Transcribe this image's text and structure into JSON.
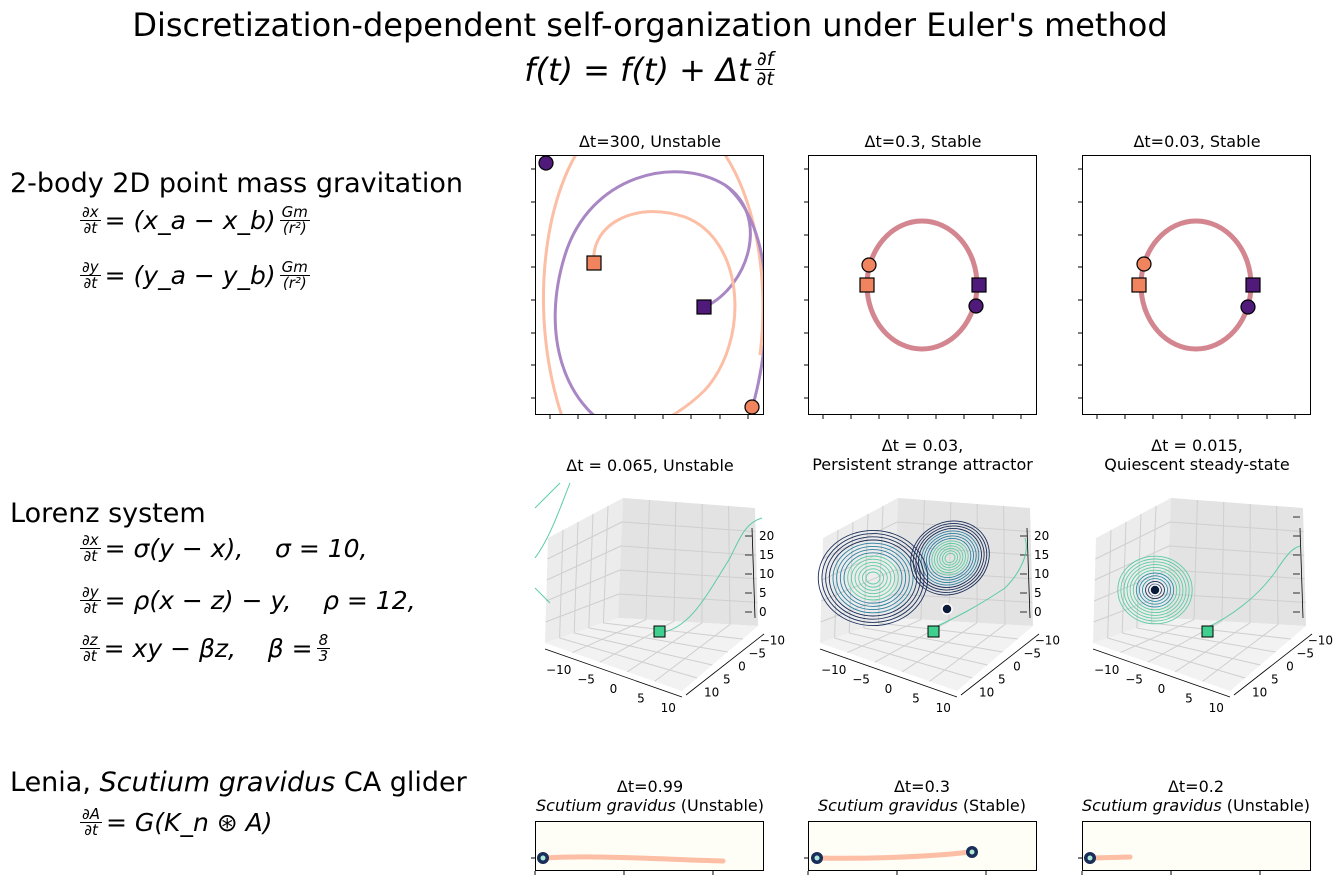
{
  "figure": {
    "title": "Discretization-dependent self-organization under Euler's method",
    "update_rule": {
      "lhs": "f(t) = f(t) + Δt",
      "num": "∂f",
      "den": "∂t"
    }
  },
  "systems": [
    {
      "name": "2-body 2D point mass gravitation",
      "equations": [
        {
          "num": "∂x",
          "den": "∂t",
          "rhs": "= (x_a − x_b)",
          "frac2_num": "Gm",
          "frac2_den": "(r²)"
        },
        {
          "num": "∂y",
          "den": "∂t",
          "rhs": "= (y_a − y_b)",
          "frac2_num": "Gm",
          "frac2_den": "(r²)"
        }
      ]
    },
    {
      "name": "Lorenz system",
      "equations": [
        {
          "num": "∂x",
          "den": "∂t",
          "rhs": "= σ(y − x),    σ = 10,"
        },
        {
          "num": "∂y",
          "den": "∂t",
          "rhs": "= ρ(x − z) − y,    ρ = 12,"
        },
        {
          "num": "∂z",
          "den": "∂t",
          "rhs": "= xy − βz,    β =",
          "frac2_num": "8",
          "frac2_den": "3"
        }
      ]
    },
    {
      "name_prefix": "Lenia, ",
      "name_italic": "Scutium gravidus",
      "name_suffix": " CA glider",
      "equations": [
        {
          "num": "∂A",
          "den": "∂t",
          "rhs": "= G(K_n ⊛ A)"
        }
      ]
    }
  ],
  "colors": {
    "body_a": "#f0845f",
    "body_b": "#4f1a7a",
    "orbit_a": "#fcbea4",
    "orbit_b": "#a887c4",
    "orbit_stable": "#d3868f",
    "lorenz_light": "#5ccca4",
    "lorenz_dark": "#1a2e5a",
    "lenia_trail": "#fcbea4",
    "lenia_bg": "#fefef6"
  },
  "chart_data": [
    {
      "type": "line",
      "title": "Δt=300, Unstable",
      "dt": 300,
      "label": "Unstable"
    },
    {
      "type": "line",
      "title": "Δt=0.3, Stable",
      "dt": 0.3,
      "label": "Stable"
    },
    {
      "type": "line",
      "title": "Δt=0.03, Stable",
      "dt": 0.03,
      "label": "Stable"
    },
    {
      "type": "line",
      "title": "Δt = 0.065, Unstable",
      "dt": 0.065,
      "label": "Unstable",
      "axis_ticks": {
        "x": [
          "−10",
          "−5",
          "0",
          "5",
          "10"
        ],
        "y": [
          "−10",
          "−5",
          "0",
          "5",
          "10"
        ],
        "z": [
          "0",
          "5",
          "10",
          "15",
          "20"
        ]
      }
    },
    {
      "type": "line",
      "title_lines": [
        "Δt = 0.03,",
        "Persistent strange attractor"
      ],
      "dt": 0.03,
      "label": "Persistent strange attractor",
      "axis_ticks": {
        "x": [
          "−10",
          "−5",
          "0",
          "5",
          "10"
        ],
        "y": [
          "−10",
          "−5",
          "0",
          "5",
          "10"
        ],
        "z": [
          "0",
          "5",
          "10",
          "15",
          "20"
        ]
      }
    },
    {
      "type": "line",
      "title_lines": [
        "Δt = 0.015,",
        "Quiescent steady-state"
      ],
      "dt": 0.015,
      "label": "Quiescent steady-state",
      "axis_ticks": {
        "x": [
          "−10",
          "−5",
          "0",
          "5",
          "10"
        ],
        "y": [
          "−10",
          "−5",
          "0",
          "5",
          "10"
        ]
      }
    },
    {
      "type": "line",
      "title_line1": "Δt=0.99",
      "species": "Scutium gravidus",
      "status": "(Unstable)",
      "dt": 0.99
    },
    {
      "type": "line",
      "title_line1": "Δt=0.3",
      "species": "Scutium gravidus",
      "status": "(Stable)",
      "dt": 0.3
    },
    {
      "type": "line",
      "title_line1": "Δt=0.2",
      "species": "Scutium gravidus",
      "status": "(Unstable)",
      "dt": 0.2
    }
  ]
}
